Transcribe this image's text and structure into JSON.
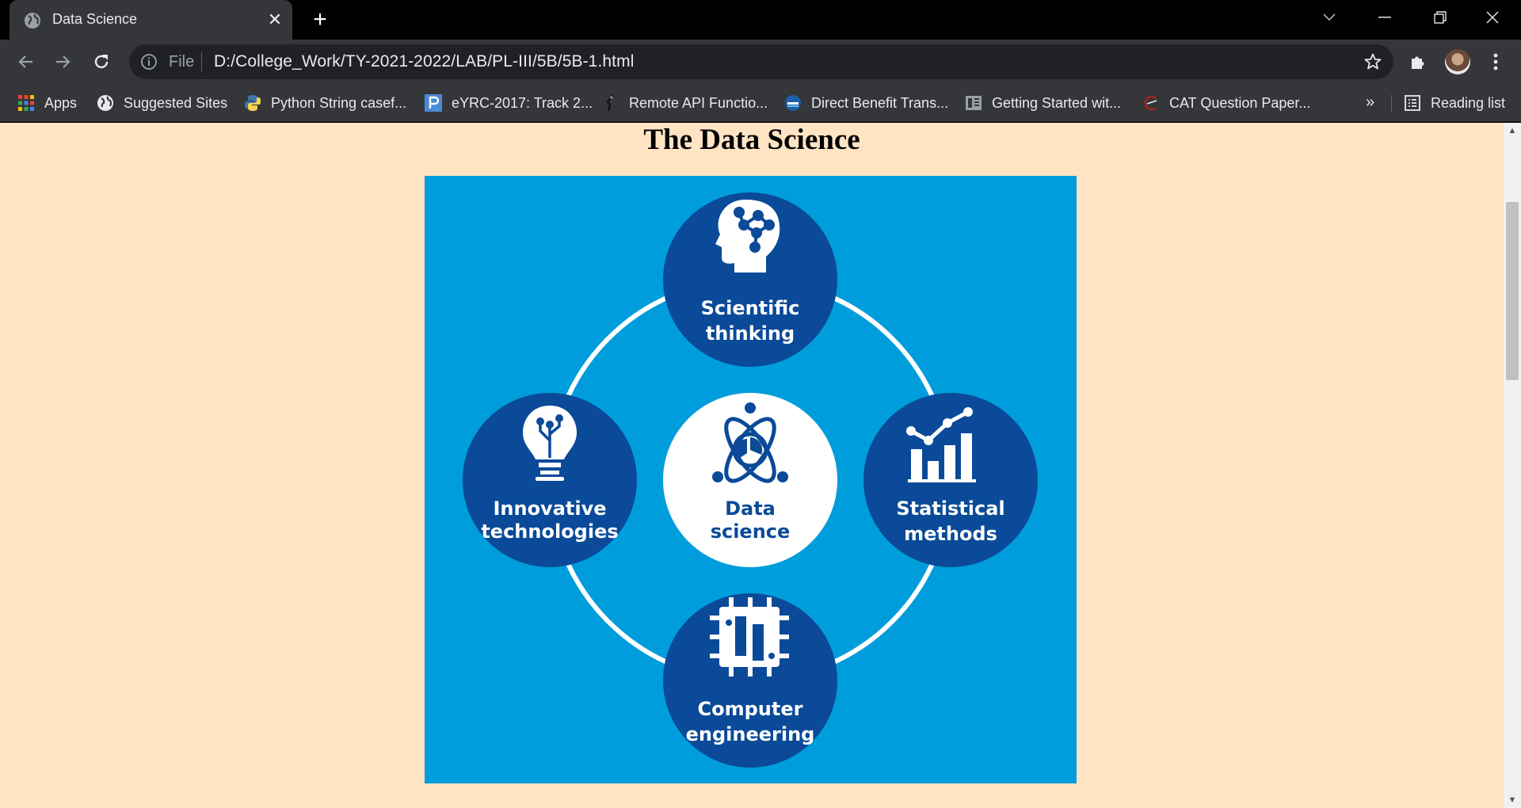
{
  "browser": {
    "tab": {
      "title": "Data Science",
      "favicon": "globe-icon",
      "close_icon": "close-icon"
    },
    "new_tab_icon": "plus-icon",
    "window_controls": [
      "tab-search-icon",
      "minimize-icon",
      "restore-icon",
      "close-icon"
    ],
    "toolbar": {
      "back_icon": "back-arrow-icon",
      "forward_icon": "forward-arrow-icon",
      "reload_icon": "reload-icon",
      "omnibox": {
        "scheme_label": "File",
        "url": "D:/College_Work/TY-2021-2022/LAB/PL-III/5B/5B-1.html",
        "info_icon": "info-icon",
        "star_icon": "star-icon"
      },
      "extensions_icon": "puzzle-icon",
      "profile_icon": "avatar",
      "menu_icon": "kebab-menu-icon"
    },
    "bookmarks": [
      {
        "label": "Apps",
        "icon": "apps-grid-icon"
      },
      {
        "label": "Suggested Sites",
        "icon": "globe-icon"
      },
      {
        "label": "Python String casef...",
        "icon": "python-icon"
      },
      {
        "label": "eYRC-2017: Track 2...",
        "icon": "p-logo-icon"
      },
      {
        "label": "Remote API Functio...",
        "icon": "robot-arm-icon"
      },
      {
        "label": "Direct Benefit Trans...",
        "icon": "dbt-icon"
      },
      {
        "label": "Getting Started wit...",
        "icon": "doc-icon"
      },
      {
        "label": "CAT Question Paper...",
        "icon": "cat-icon"
      }
    ],
    "bookmarks_overflow": "»",
    "reading_list": "Reading list"
  },
  "page": {
    "heading": "The Data Science",
    "figure": {
      "center": {
        "line1": "Data",
        "line2": "science"
      },
      "nodes": [
        {
          "id": "scientific",
          "line1": "Scientific",
          "line2": "thinking",
          "icon": "brain-head-icon"
        },
        {
          "id": "statistical",
          "line1": "Statistical",
          "line2": "methods",
          "icon": "bar-chart-icon"
        },
        {
          "id": "computer",
          "line1": "Computer",
          "line2": "engineering",
          "icon": "circuit-chip-icon"
        },
        {
          "id": "innovative",
          "line1": "Innovative",
          "line2": "technologies",
          "icon": "lightbulb-icon"
        }
      ],
      "colors": {
        "background": "#009ddc",
        "node": "#0a4a98",
        "center": "#ffffff",
        "ring": "#ffffff",
        "page_bg": "#ffe4c4"
      }
    }
  }
}
